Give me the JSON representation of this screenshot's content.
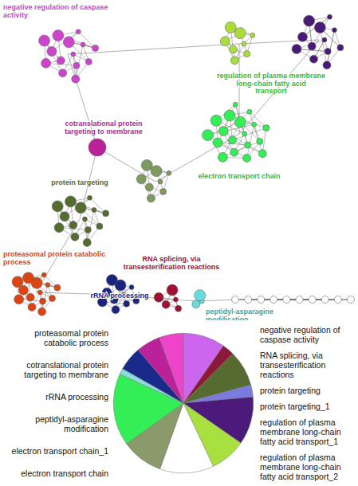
{
  "network": {
    "clusters": [
      {
        "label": "negative regulation of caspase activity",
        "color": "#cc44cc"
      },
      {
        "label": "regulation of plasma membrane long-chain fatty acid transport",
        "color": "#a8dd3c"
      },
      {
        "label": null,
        "color": "#4a1a78"
      },
      {
        "label": "electron transport chain",
        "color": "#33ee55"
      },
      {
        "label": null,
        "color": "#7e9a5e"
      },
      {
        "label": "cotranslational protein targeting to membrane",
        "color": "#bb2299"
      },
      {
        "label": "protein targeting",
        "color": "#556b2f"
      },
      {
        "label": "proteasomal protein catabolic process",
        "color": "#dd4411"
      },
      {
        "label": "rRNA processing",
        "color": "#1a237e"
      },
      {
        "label": "RNA splicing, via transesterification reactions",
        "color": "#a01030"
      },
      {
        "label": "peptidyl-asparagine modification",
        "color": "#66dddd"
      },
      {
        "label": null,
        "color": "#ffffff"
      }
    ]
  },
  "chart_data": {
    "type": "pie",
    "categories": [
      "negative regulation of caspase activity",
      "RNA splicing, via transesterification reactions",
      "protein targeting",
      "protein targeting_1",
      "regulation of plasma membrane long-chain fatty acid transport_1",
      "regulation of plasma membrane long-chain fatty acid transport_2",
      null,
      "electron transport chain",
      "electron transport chain_1",
      "peptidyl-asparagine modification",
      "rRNA processing",
      "cotranslational protein targeting to membrane",
      "proteasomal protein catabolic process"
    ],
    "values": [
      9.7,
      2.8,
      8.3,
      2.8,
      11.1,
      8.3,
      12.5,
      9.7,
      16.7,
      1.4,
      5.6,
      5.6,
      5.6
    ],
    "colors": [
      "#cc66ee",
      "#8b1a3a",
      "#556b2f",
      "#7b7bdd",
      "#4b1a7a",
      "#a8e040",
      "#ffffff",
      "#8a9a6a",
      "#33ee55",
      "#88dddd",
      "#1a2a8a",
      "#bb2299",
      "#ee44cc"
    ],
    "legend": false
  }
}
